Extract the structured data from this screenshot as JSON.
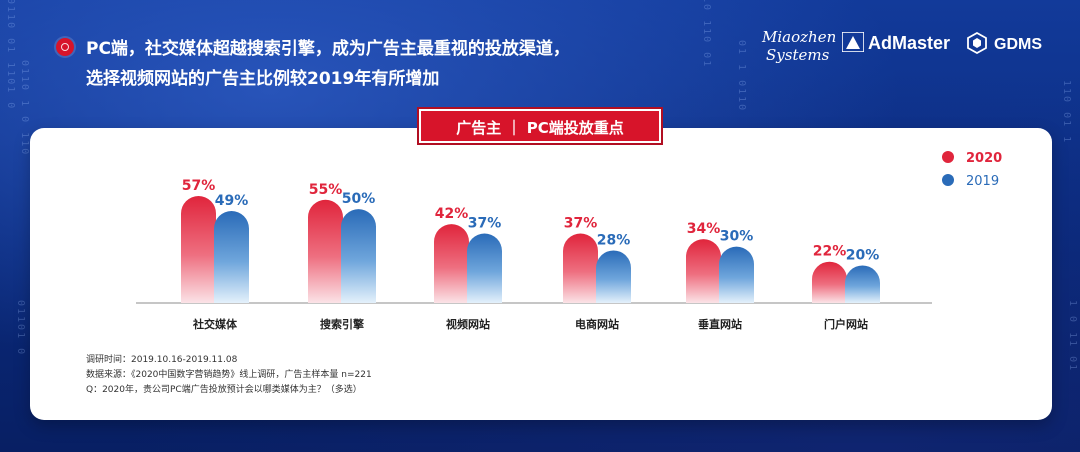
{
  "headline": {
    "line1": "PC端，社交媒体超越搜索引擎，成为广告主最重视的投放渠道，",
    "line2": "选择视频网站的广告主比例较2019年有所增加"
  },
  "logos": {
    "miaozhen_line1": "Miaozhen",
    "miaozhen_line2": "Systems",
    "admaster": "AdMaster",
    "gdms": "GDMS"
  },
  "card_title": "广告主 ｜ PC端投放重点",
  "chart_data": {
    "type": "bar",
    "categories": [
      "社交媒体",
      "搜索引擎",
      "视频网站",
      "电商网站",
      "垂直网站",
      "门户网站"
    ],
    "series": [
      {
        "name": "2020",
        "values": [
          57,
          55,
          42,
          37,
          34,
          22
        ],
        "color": "#e0253c"
      },
      {
        "name": "2019",
        "values": [
          49,
          50,
          37,
          28,
          30,
          20
        ],
        "color": "#2a6bb8"
      }
    ],
    "value_labels": {
      "2020": [
        "57%",
        "55%",
        "42%",
        "37%",
        "34%",
        "22%"
      ],
      "2019": [
        "49%",
        "50%",
        "37%",
        "28%",
        "30%",
        "20%"
      ]
    },
    "legend_position": "top-right",
    "ylim": [
      0,
      60
    ]
  },
  "notes": {
    "line1": "调研时间：2019.10.16-2019.11.08",
    "line2": "数据来源：《2020中国数字营销趋势》线上调研，广告主样本量 n=221",
    "line3": "Q：2020年，贵公司PC端广告投放预计会以哪类媒体为主？（多选）"
  }
}
